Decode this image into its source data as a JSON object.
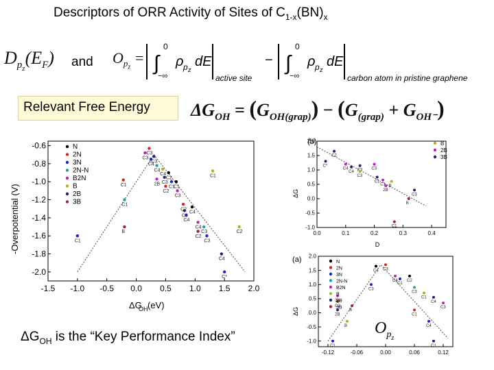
{
  "title": {
    "main": "Descriptors of  ORR Activity of Sites of C",
    "sub1": "1-x",
    "paren": "(BN)",
    "sub2": "x"
  },
  "formula1": {
    "lhs": "D",
    "lhs_sub": "p",
    "lhs_subsub": "z",
    "lhs_arg": "(E",
    "lhs_arg_sub": "F",
    "lhs_close": ")",
    "and": "and",
    "rhs_O": "O",
    "rhs_eq": " = ",
    "integral_upper": "0",
    "integral_lower": "−∞",
    "integrand": "ρ",
    "dE": "dE",
    "minus": "−",
    "label_active": "active site",
    "label_carbon": "carbon atom in pristine graphene"
  },
  "formula2": {
    "box_label": "Relevant Free Energy",
    "lhs": "ΔG",
    "lhs_sub": "OH",
    "eq": "=",
    "t1": "G",
    "t1_sub": "OH(grap)",
    "minus": "−",
    "t2": "G",
    "t2_sub": "(grap)",
    "plus": "+",
    "t3": "G",
    "t3_sub": "OH⁻"
  },
  "kpi": {
    "pre": "ΔG",
    "sub": "OH",
    "post": " is the “Key Performance Index”"
  },
  "opz_label": {
    "O": "O",
    "sub": "p",
    "subsub": "z"
  },
  "chart_data": [
    {
      "type": "scatter",
      "title": "",
      "xlabel": "ΔG",
      "xlabel_sub": "OH",
      "xlabel_unit": " (eV)",
      "ylabel": "-Overpotential (V)",
      "xlim": [
        -1.5,
        2.0
      ],
      "ylim": [
        -2.1,
        -0.55
      ],
      "xticks": [
        "-1.5",
        "-1.0",
        "-0.5",
        "0.0",
        "0.5",
        "1.0",
        "1.5",
        "2.0"
      ],
      "yticks": [
        "-0.6",
        "-0.8",
        "-1.0",
        "-1.2",
        "-1.4",
        "-1.6",
        "-1.8",
        "-2.0"
      ],
      "legend": [
        "N",
        "2N",
        "3N",
        "2N-N",
        "B2N",
        "B",
        "2B",
        "3B"
      ],
      "legend_colors": [
        "#000000",
        "#e02020",
        "#2020d0",
        "#20a0a0",
        "#c020c0",
        "#b0b020",
        "#202080",
        "#a02040"
      ],
      "legend_placement": "top-left",
      "volcano": [
        [
          -1.0,
          -2.0
        ],
        [
          0.3,
          -0.7
        ],
        [
          1.85,
          -2.0
        ]
      ],
      "points": [
        {
          "x": -1.0,
          "y": -1.6,
          "label": "C1",
          "color": "#2020d0"
        },
        {
          "x": -0.22,
          "y": -0.98,
          "label": "C1",
          "color": "#e02020"
        },
        {
          "x": -0.2,
          "y": -1.2,
          "label": "C1",
          "color": "#20a0a0"
        },
        {
          "x": -0.2,
          "y": -1.5,
          "label": "B",
          "color": "#a02040"
        },
        {
          "x": 0.15,
          "y": -0.68,
          "label": "C3",
          "color": "#c020c0"
        },
        {
          "x": 0.22,
          "y": -0.63,
          "label": "C3",
          "color": "#e02020"
        },
        {
          "x": 0.25,
          "y": -0.75,
          "label": "C4",
          "color": "#2020d0"
        },
        {
          "x": 0.3,
          "y": -0.72,
          "label": "C3",
          "color": "#202080"
        },
        {
          "x": 0.35,
          "y": -0.82,
          "label": "C4",
          "color": "#20a0a0"
        },
        {
          "x": 0.45,
          "y": -0.86,
          "label": "C4",
          "color": "#b0b020"
        },
        {
          "x": 0.35,
          "y": -0.97,
          "label": "2B",
          "color": "#c020c0"
        },
        {
          "x": 0.48,
          "y": -0.95,
          "label": "C3",
          "color": "#202080"
        },
        {
          "x": 0.55,
          "y": -0.9,
          "label": "C2",
          "color": "#000000"
        },
        {
          "x": 0.6,
          "y": -1.0,
          "label": "C1",
          "color": "#2020d0"
        },
        {
          "x": 0.68,
          "y": -1.0,
          "label": "C1",
          "color": "#000000"
        },
        {
          "x": 0.5,
          "y": -1.05,
          "label": "C2",
          "color": "#e02020"
        },
        {
          "x": 0.7,
          "y": -1.1,
          "label": "C3",
          "color": "#c020c0"
        },
        {
          "x": 1.3,
          "y": -0.88,
          "label": "C1",
          "color": "#b0b020"
        },
        {
          "x": 0.8,
          "y": -1.25,
          "label": "C2",
          "color": "#e02020"
        },
        {
          "x": 0.82,
          "y": -1.32,
          "label": "C3",
          "color": "#202080"
        },
        {
          "x": 0.85,
          "y": -1.37,
          "label": "C4",
          "color": "#2020d0"
        },
        {
          "x": 0.95,
          "y": -1.28,
          "label": "C4",
          "color": "#000000"
        },
        {
          "x": 1.05,
          "y": -1.45,
          "label": "C4",
          "color": "#c020c0"
        },
        {
          "x": 1.15,
          "y": -1.5,
          "label": "C3",
          "color": "#20a0a0"
        },
        {
          "x": 1.05,
          "y": -1.55,
          "label": "C2",
          "color": "#a02040"
        },
        {
          "x": 1.2,
          "y": -1.6,
          "label": "C3",
          "color": "#2020d0"
        },
        {
          "x": 1.75,
          "y": -1.5,
          "label": "C2",
          "color": "#b0b020"
        },
        {
          "x": 1.45,
          "y": -1.8,
          "label": "C4",
          "color": "#202080"
        },
        {
          "x": 1.5,
          "y": -2.0,
          "label": "C*",
          "color": "#2020d0"
        }
      ]
    },
    {
      "type": "scatter",
      "panel_label": "(b)",
      "xlabel": "D",
      "ylabel": "ΔG",
      "xlim": [
        0.0,
        0.45
      ],
      "ylim": [
        -1.0,
        2.0
      ],
      "xticks": [
        "0.0",
        "0.1",
        "0.2",
        "0.3",
        "0.4"
      ],
      "yticks": [
        "2.0",
        "1.5",
        "1.0",
        "0.5",
        "0.0",
        "-0.5",
        "-1.0"
      ],
      "legend": [
        "B",
        "2B",
        "3B"
      ],
      "legend_colors": [
        "#b0b020",
        "#c020c0",
        "#202080"
      ],
      "trend": [
        [
          0.0,
          1.8
        ],
        [
          0.38,
          -0.25
        ]
      ],
      "points": [
        {
          "x": 0.06,
          "y": 1.65,
          "label": "C2",
          "color": "#202080"
        },
        {
          "x": 0.03,
          "y": 1.3,
          "label": "C*",
          "color": "#202080"
        },
        {
          "x": 0.1,
          "y": 1.2,
          "label": "C4",
          "color": "#c020c0"
        },
        {
          "x": 0.12,
          "y": 1.1,
          "label": "C4",
          "color": "#202080"
        },
        {
          "x": 0.15,
          "y": 1.15,
          "label": "C3",
          "color": "#202080"
        },
        {
          "x": 0.2,
          "y": 1.2,
          "label": "C3",
          "color": "#c020c0"
        },
        {
          "x": 0.15,
          "y": 0.95,
          "label": "C3",
          "color": "#b0b020"
        },
        {
          "x": 0.21,
          "y": 0.75,
          "label": "C1",
          "color": "#202080"
        },
        {
          "x": 0.23,
          "y": 0.65,
          "label": "C1",
          "color": "#c020c0"
        },
        {
          "x": 0.26,
          "y": 0.6,
          "label": "B",
          "color": "#b0b020"
        },
        {
          "x": 0.24,
          "y": 0.45,
          "label": "2B",
          "color": "#c020c0"
        },
        {
          "x": 0.34,
          "y": 0.3,
          "label": "C3",
          "color": "#202080"
        },
        {
          "x": 0.32,
          "y": 0.0,
          "label": "B",
          "color": "#a02040"
        },
        {
          "x": 0.27,
          "y": -0.8,
          "label": "C1",
          "color": "#a02040"
        }
      ]
    },
    {
      "type": "scatter",
      "panel_label": "(a)",
      "xlabel": "",
      "ylabel": "ΔG",
      "xlim": [
        -0.14,
        0.14
      ],
      "ylim": [
        -1.2,
        2.0
      ],
      "xticks": [
        "-0.12",
        "-0.06",
        "0.00",
        "0.06",
        "0.12"
      ],
      "yticks": [
        "2.0",
        "1.5",
        "1.0",
        "0.5",
        "0.0",
        "-0.5",
        "-1.0"
      ],
      "legend": [
        "N",
        "2N",
        "3N",
        "2N-N",
        "B2N",
        "B",
        "2B",
        "3B"
      ],
      "legend_colors": [
        "#000000",
        "#e02020",
        "#2020d0",
        "#20a0a0",
        "#c020c0",
        "#b0b020",
        "#202080",
        "#a02040"
      ],
      "trend": [
        [
          -0.12,
          -1.0
        ],
        [
          -0.01,
          1.7
        ],
        [
          0.13,
          -0.9
        ]
      ],
      "points": [
        {
          "x": -0.11,
          "y": -1.0,
          "label": "C1",
          "color": "#2020d0"
        },
        {
          "x": -0.08,
          "y": -0.3,
          "label": "B",
          "color": "#b0b020"
        },
        {
          "x": -0.07,
          "y": 0.25,
          "label": "B",
          "color": "#a02040"
        },
        {
          "x": -0.1,
          "y": 0.1,
          "label": "2B",
          "color": "#202080"
        },
        {
          "x": -0.1,
          "y": 0.4,
          "label": "C2",
          "color": "#e02020"
        },
        {
          "x": -0.1,
          "y": 0.6,
          "label": "3N",
          "color": "#c020c0"
        },
        {
          "x": -0.03,
          "y": 1.0,
          "label": "C3",
          "color": "#2020d0"
        },
        {
          "x": -0.02,
          "y": 1.65,
          "label": "C4",
          "color": "#000000"
        },
        {
          "x": 0.0,
          "y": 1.7,
          "label": "C3",
          "color": "#e02020"
        },
        {
          "x": 0.02,
          "y": 1.3,
          "label": "C4",
          "color": "#c020c0"
        },
        {
          "x": 0.03,
          "y": 1.2,
          "label": "C1",
          "color": "#2020d0"
        },
        {
          "x": 0.05,
          "y": 1.3,
          "label": "C2",
          "color": "#000000"
        },
        {
          "x": 0.06,
          "y": 0.9,
          "label": "C3",
          "color": "#20a0a0"
        },
        {
          "x": 0.08,
          "y": 0.7,
          "label": "C1",
          "color": "#b0b020"
        },
        {
          "x": 0.1,
          "y": 0.55,
          "label": "C4",
          "color": "#202080"
        },
        {
          "x": 0.12,
          "y": 0.35,
          "label": "C3",
          "color": "#c020c0"
        },
        {
          "x": 0.06,
          "y": 0.1,
          "label": "C1",
          "color": "#e02020"
        },
        {
          "x": 0.09,
          "y": -0.3,
          "label": "C4",
          "color": "#2020d0"
        },
        {
          "x": 0.1,
          "y": -1.0,
          "label": "C1",
          "color": "#202080"
        }
      ]
    }
  ]
}
